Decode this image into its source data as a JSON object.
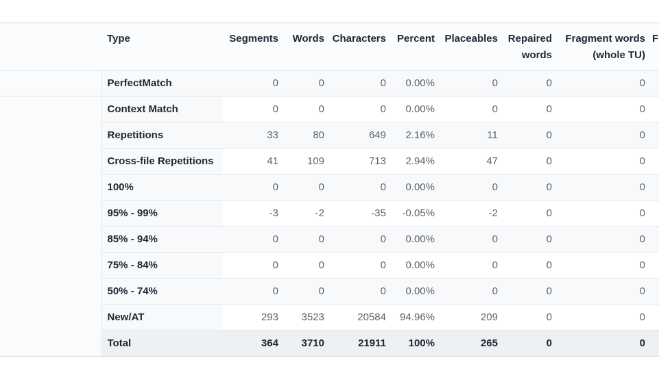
{
  "table": {
    "columns": [
      {
        "key": "type",
        "label": "Type",
        "align": "left"
      },
      {
        "key": "segments",
        "label": "Segments",
        "align": "right"
      },
      {
        "key": "words",
        "label": "Words",
        "align": "right"
      },
      {
        "key": "characters",
        "label": "Characters",
        "align": "right"
      },
      {
        "key": "percent",
        "label": "Percent",
        "align": "right"
      },
      {
        "key": "placeables",
        "label": "Placeables",
        "align": "right"
      },
      {
        "key": "repaired_words",
        "label": "Repaired words",
        "align": "right"
      },
      {
        "key": "fragment_words",
        "label": "Fragment words (whole TU)",
        "align": "right"
      },
      {
        "key": "trailing",
        "label": "F",
        "align": "left"
      }
    ],
    "rows": [
      {
        "type": "PerfectMatch",
        "segments": "0",
        "words": "0",
        "characters": "0",
        "percent": "0.00%",
        "placeables": "0",
        "repaired_words": "0",
        "fragment_words": "0",
        "trailing": "",
        "is_total": false
      },
      {
        "type": "Context Match",
        "segments": "0",
        "words": "0",
        "characters": "0",
        "percent": "0.00%",
        "placeables": "0",
        "repaired_words": "0",
        "fragment_words": "0",
        "trailing": "",
        "is_total": false
      },
      {
        "type": "Repetitions",
        "segments": "33",
        "words": "80",
        "characters": "649",
        "percent": "2.16%",
        "placeables": "11",
        "repaired_words": "0",
        "fragment_words": "0",
        "trailing": "",
        "is_total": false
      },
      {
        "type": "Cross-file Repetitions",
        "segments": "41",
        "words": "109",
        "characters": "713",
        "percent": "2.94%",
        "placeables": "47",
        "repaired_words": "0",
        "fragment_words": "0",
        "trailing": "",
        "is_total": false
      },
      {
        "type": "100%",
        "segments": "0",
        "words": "0",
        "characters": "0",
        "percent": "0.00%",
        "placeables": "0",
        "repaired_words": "0",
        "fragment_words": "0",
        "trailing": "",
        "is_total": false
      },
      {
        "type": "95% - 99%",
        "segments": "-3",
        "words": "-2",
        "characters": "-35",
        "percent": "-0.05%",
        "placeables": "-2",
        "repaired_words": "0",
        "fragment_words": "0",
        "trailing": "",
        "is_total": false
      },
      {
        "type": "85% - 94%",
        "segments": "0",
        "words": "0",
        "characters": "0",
        "percent": "0.00%",
        "placeables": "0",
        "repaired_words": "0",
        "fragment_words": "0",
        "trailing": "",
        "is_total": false
      },
      {
        "type": "75% - 84%",
        "segments": "0",
        "words": "0",
        "characters": "0",
        "percent": "0.00%",
        "placeables": "0",
        "repaired_words": "0",
        "fragment_words": "0",
        "trailing": "",
        "is_total": false
      },
      {
        "type": "50% - 74%",
        "segments": "0",
        "words": "0",
        "characters": "0",
        "percent": "0.00%",
        "placeables": "0",
        "repaired_words": "0",
        "fragment_words": "0",
        "trailing": "",
        "is_total": false
      },
      {
        "type": "New/AT",
        "segments": "293",
        "words": "3523",
        "characters": "20584",
        "percent": "94.96%",
        "placeables": "209",
        "repaired_words": "0",
        "fragment_words": "0",
        "trailing": "",
        "is_total": false
      },
      {
        "type": "Total",
        "segments": "364",
        "words": "3710",
        "characters": "21911",
        "percent": "100%",
        "placeables": "265",
        "repaired_words": "0",
        "fragment_words": "0",
        "trailing": "",
        "is_total": true
      }
    ]
  },
  "colors": {
    "stripe_bg": "#f8f9fa",
    "total_row_bg": "#edf1f4",
    "row_border": "#e2e6e9",
    "table_edge_border": "#c9d2d8",
    "header_bg": "#fbfcfd",
    "header_text": "#1b2733",
    "value_text": "#5d646b",
    "lead_column_bg": "#fafbfc"
  }
}
